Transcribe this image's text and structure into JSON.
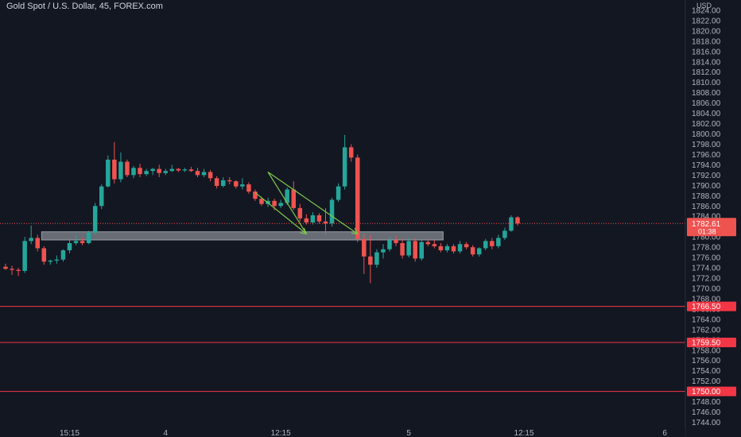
{
  "header": {
    "title": "Gold Spot / U.S. Dollar, 45, FOREX.com"
  },
  "colors": {
    "background": "#131722",
    "up": "#26a69a",
    "down": "#ef5350",
    "axis_text": "#b2b5be",
    "level_line": "#f23645",
    "zone": "#d1d4dc",
    "drawing": "#7cc84a"
  },
  "chart_data": {
    "type": "candlestick",
    "title": "Gold Spot / U.S. Dollar, 45, FOREX.com",
    "ylim": [
      1743,
      1826
    ],
    "y_ticks": [
      1744,
      1746,
      1748,
      1750,
      1752,
      1754,
      1756,
      1758,
      1760,
      1762,
      1764,
      1766,
      1768,
      1770,
      1772,
      1774,
      1776,
      1778,
      1780,
      1782,
      1784,
      1786,
      1788,
      1790,
      1792,
      1794,
      1796,
      1798,
      1800,
      1802,
      1804,
      1806,
      1808,
      1810,
      1812,
      1814,
      1816,
      1818,
      1820,
      1822,
      1824
    ],
    "y_tick_labels": [
      "1744.00",
      "1746.00",
      "1748.00",
      "1750.00",
      "1752.00",
      "1754.00",
      "1756.00",
      "1758.00",
      "1760.00",
      "1762.00",
      "1764.00",
      "1766.00",
      "1768.00",
      "1770.00",
      "1772.00",
      "1774.00",
      "1776.00",
      "1778.00",
      "1780.00",
      "1782.00",
      "1784.00",
      "1786.00",
      "1788.00",
      "1790.00",
      "1792.00",
      "1794.00",
      "1796.00",
      "1798.00",
      "1800.00",
      "1802.00",
      "1804.00",
      "1806.00",
      "1808.00",
      "1810.00",
      "1812.00",
      "1814.00",
      "1816.00",
      "1818.00",
      "1820.00",
      "1822.00",
      "1824.00"
    ],
    "currency_label": "USD",
    "x_labels": [
      "15:15",
      "4",
      "12:15",
      "5",
      "12:15",
      "6"
    ],
    "x_label_bar_index": [
      10,
      25,
      43,
      63,
      81,
      103
    ],
    "candles": [
      {
        "o": 1774.2,
        "h": 1774.8,
        "l": 1773.6,
        "c": 1773.8
      },
      {
        "o": 1773.8,
        "h": 1774.4,
        "l": 1772.6,
        "c": 1773.6
      },
      {
        "o": 1773.6,
        "h": 1774.0,
        "l": 1772.4,
        "c": 1773.4
      },
      {
        "o": 1773.4,
        "h": 1780.0,
        "l": 1773.0,
        "c": 1779.2
      },
      {
        "o": 1779.2,
        "h": 1782.2,
        "l": 1778.6,
        "c": 1779.8
      },
      {
        "o": 1779.8,
        "h": 1780.4,
        "l": 1777.2,
        "c": 1777.8
      },
      {
        "o": 1777.8,
        "h": 1778.2,
        "l": 1774.6,
        "c": 1775.2
      },
      {
        "o": 1775.2,
        "h": 1775.6,
        "l": 1774.6,
        "c": 1775.4
      },
      {
        "o": 1775.4,
        "h": 1776.4,
        "l": 1774.8,
        "c": 1775.6
      },
      {
        "o": 1775.6,
        "h": 1777.6,
        "l": 1775.2,
        "c": 1777.4
      },
      {
        "o": 1777.4,
        "h": 1779.8,
        "l": 1776.8,
        "c": 1778.8
      },
      {
        "o": 1778.8,
        "h": 1780.4,
        "l": 1778.4,
        "c": 1779.2
      },
      {
        "o": 1779.2,
        "h": 1779.8,
        "l": 1778.4,
        "c": 1778.8
      },
      {
        "o": 1778.8,
        "h": 1781.2,
        "l": 1778.6,
        "c": 1780.8
      },
      {
        "o": 1780.8,
        "h": 1786.6,
        "l": 1780.4,
        "c": 1786.0
      },
      {
        "o": 1786.0,
        "h": 1790.2,
        "l": 1785.4,
        "c": 1789.8
      },
      {
        "o": 1789.8,
        "h": 1795.8,
        "l": 1789.6,
        "c": 1795.0
      },
      {
        "o": 1795.0,
        "h": 1798.4,
        "l": 1790.4,
        "c": 1791.2
      },
      {
        "o": 1791.2,
        "h": 1796.4,
        "l": 1790.6,
        "c": 1794.6
      },
      {
        "o": 1794.6,
        "h": 1795.0,
        "l": 1791.6,
        "c": 1792.0
      },
      {
        "o": 1792.0,
        "h": 1793.8,
        "l": 1791.4,
        "c": 1793.4
      },
      {
        "o": 1793.4,
        "h": 1794.2,
        "l": 1791.6,
        "c": 1792.2
      },
      {
        "o": 1792.2,
        "h": 1793.2,
        "l": 1791.8,
        "c": 1792.8
      },
      {
        "o": 1792.8,
        "h": 1793.4,
        "l": 1792.0,
        "c": 1793.2
      },
      {
        "o": 1793.2,
        "h": 1794.0,
        "l": 1791.6,
        "c": 1792.4
      },
      {
        "o": 1792.4,
        "h": 1793.2,
        "l": 1792.0,
        "c": 1792.8
      },
      {
        "o": 1792.8,
        "h": 1794.0,
        "l": 1792.6,
        "c": 1793.2
      },
      {
        "o": 1793.2,
        "h": 1793.4,
        "l": 1792.6,
        "c": 1792.9
      },
      {
        "o": 1792.9,
        "h": 1793.4,
        "l": 1792.6,
        "c": 1793.1
      },
      {
        "o": 1793.1,
        "h": 1793.6,
        "l": 1792.6,
        "c": 1792.8
      },
      {
        "o": 1792.8,
        "h": 1793.4,
        "l": 1791.6,
        "c": 1792.0
      },
      {
        "o": 1792.0,
        "h": 1793.2,
        "l": 1791.6,
        "c": 1792.6
      },
      {
        "o": 1792.6,
        "h": 1793.0,
        "l": 1790.8,
        "c": 1791.4
      },
      {
        "o": 1791.4,
        "h": 1791.8,
        "l": 1789.4,
        "c": 1789.9
      },
      {
        "o": 1789.9,
        "h": 1791.6,
        "l": 1789.6,
        "c": 1791.0
      },
      {
        "o": 1791.0,
        "h": 1791.6,
        "l": 1790.2,
        "c": 1790.8
      },
      {
        "o": 1790.8,
        "h": 1791.0,
        "l": 1789.4,
        "c": 1789.8
      },
      {
        "o": 1789.8,
        "h": 1791.4,
        "l": 1789.2,
        "c": 1790.2
      },
      {
        "o": 1790.2,
        "h": 1790.6,
        "l": 1788.4,
        "c": 1788.8
      },
      {
        "o": 1788.8,
        "h": 1789.2,
        "l": 1787.0,
        "c": 1787.4
      },
      {
        "o": 1787.4,
        "h": 1787.8,
        "l": 1786.0,
        "c": 1786.4
      },
      {
        "o": 1786.4,
        "h": 1787.6,
        "l": 1785.8,
        "c": 1787.0
      },
      {
        "o": 1787.0,
        "h": 1787.4,
        "l": 1785.2,
        "c": 1786.0
      },
      {
        "o": 1786.0,
        "h": 1787.2,
        "l": 1785.6,
        "c": 1786.6
      },
      {
        "o": 1786.6,
        "h": 1789.6,
        "l": 1786.2,
        "c": 1789.2
      },
      {
        "o": 1789.2,
        "h": 1790.8,
        "l": 1785.2,
        "c": 1785.6
      },
      {
        "o": 1785.6,
        "h": 1786.4,
        "l": 1783.0,
        "c": 1783.6
      },
      {
        "o": 1783.6,
        "h": 1784.4,
        "l": 1782.4,
        "c": 1782.8
      },
      {
        "o": 1782.8,
        "h": 1784.8,
        "l": 1782.4,
        "c": 1784.2
      },
      {
        "o": 1784.2,
        "h": 1784.6,
        "l": 1782.6,
        "c": 1783.0
      },
      {
        "o": 1783.0,
        "h": 1785.6,
        "l": 1780.4,
        "c": 1782.6
      },
      {
        "o": 1782.6,
        "h": 1787.6,
        "l": 1782.0,
        "c": 1787.2
      },
      {
        "o": 1787.2,
        "h": 1790.4,
        "l": 1786.8,
        "c": 1789.8
      },
      {
        "o": 1789.8,
        "h": 1799.8,
        "l": 1789.2,
        "c": 1797.4
      },
      {
        "o": 1797.4,
        "h": 1798.0,
        "l": 1794.6,
        "c": 1795.4
      },
      {
        "o": 1795.4,
        "h": 1796.0,
        "l": 1779.0,
        "c": 1779.6
      },
      {
        "o": 1779.6,
        "h": 1780.6,
        "l": 1772.8,
        "c": 1776.2
      },
      {
        "o": 1776.2,
        "h": 1780.4,
        "l": 1771.0,
        "c": 1774.6
      },
      {
        "o": 1774.6,
        "h": 1777.6,
        "l": 1774.0,
        "c": 1777.0
      },
      {
        "o": 1777.0,
        "h": 1778.6,
        "l": 1775.8,
        "c": 1777.6
      },
      {
        "o": 1777.6,
        "h": 1780.0,
        "l": 1777.2,
        "c": 1779.4
      },
      {
        "o": 1779.4,
        "h": 1780.2,
        "l": 1778.2,
        "c": 1778.8
      },
      {
        "o": 1778.8,
        "h": 1779.6,
        "l": 1775.8,
        "c": 1776.4
      },
      {
        "o": 1776.4,
        "h": 1779.8,
        "l": 1776.0,
        "c": 1779.2
      },
      {
        "o": 1779.2,
        "h": 1779.8,
        "l": 1775.2,
        "c": 1775.8
      },
      {
        "o": 1775.8,
        "h": 1779.6,
        "l": 1775.4,
        "c": 1779.0
      },
      {
        "o": 1779.0,
        "h": 1779.6,
        "l": 1778.2,
        "c": 1778.6
      },
      {
        "o": 1778.6,
        "h": 1779.4,
        "l": 1777.8,
        "c": 1778.2
      },
      {
        "o": 1778.2,
        "h": 1778.8,
        "l": 1777.0,
        "c": 1777.4
      },
      {
        "o": 1777.4,
        "h": 1778.6,
        "l": 1777.0,
        "c": 1778.2
      },
      {
        "o": 1778.2,
        "h": 1778.6,
        "l": 1776.8,
        "c": 1777.2
      },
      {
        "o": 1777.2,
        "h": 1779.2,
        "l": 1776.8,
        "c": 1778.6
      },
      {
        "o": 1778.6,
        "h": 1779.0,
        "l": 1777.6,
        "c": 1778.0
      },
      {
        "o": 1778.0,
        "h": 1778.4,
        "l": 1776.2,
        "c": 1776.6
      },
      {
        "o": 1776.6,
        "h": 1778.0,
        "l": 1776.2,
        "c": 1777.8
      },
      {
        "o": 1777.8,
        "h": 1779.6,
        "l": 1777.4,
        "c": 1779.2
      },
      {
        "o": 1779.2,
        "h": 1779.8,
        "l": 1777.6,
        "c": 1778.2
      },
      {
        "o": 1778.2,
        "h": 1780.4,
        "l": 1777.8,
        "c": 1779.8
      },
      {
        "o": 1779.8,
        "h": 1781.8,
        "l": 1779.4,
        "c": 1781.2
      },
      {
        "o": 1781.2,
        "h": 1784.2,
        "l": 1781.0,
        "c": 1783.8
      },
      {
        "o": 1783.8,
        "h": 1784.0,
        "l": 1782.2,
        "c": 1782.6
      }
    ],
    "current_price": {
      "value": 1782.61,
      "label": "1782.61",
      "countdown": "01:38"
    },
    "support_levels": [
      {
        "value": 1766.5,
        "label": "1766.50"
      },
      {
        "value": 1759.5,
        "label": "1759.50"
      },
      {
        "value": 1750.0,
        "label": "1750.00"
      }
    ],
    "zone": {
      "from_bar": 6,
      "to_bar": 68,
      "y_low": 1779.4,
      "y_high": 1781.0
    },
    "drawings": [
      {
        "type": "zigzag",
        "points": [
          [
            39,
            1788.6
          ],
          [
            47,
            1780.6
          ],
          [
            41,
            1792.6
          ],
          [
            55,
            1780.6
          ]
        ]
      }
    ],
    "grid": false,
    "legend": "none"
  }
}
